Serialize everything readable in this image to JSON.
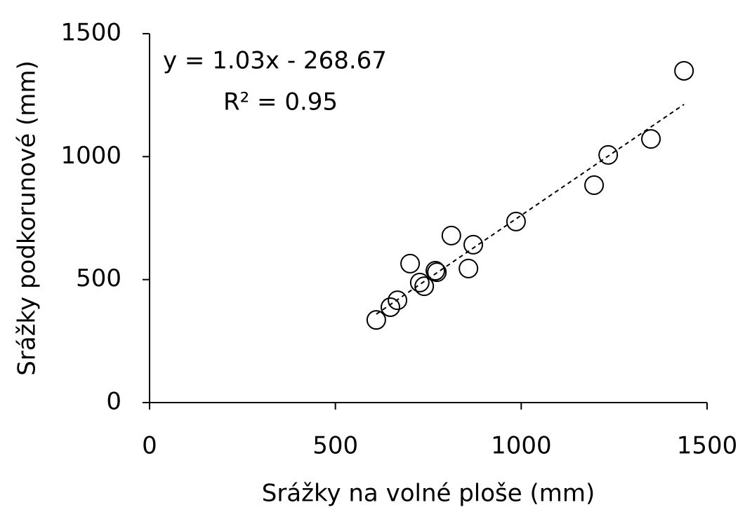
{
  "chart_data": {
    "type": "scatter",
    "x_label": "Srážky na volné ploše (mm)",
    "y_label": "Srážky podkorunové (mm)",
    "x": [
      610,
      648,
      667,
      701,
      727,
      739,
      769,
      773,
      812,
      858,
      871,
      986,
      1196,
      1234,
      1349,
      1438
    ],
    "values": [
      336,
      388,
      416,
      565,
      488,
      473,
      536,
      530,
      679,
      545,
      642,
      736,
      884,
      1007,
      1072,
      1349
    ],
    "color": "#000000",
    "xlim": [
      0,
      1500
    ],
    "xticks": [
      0,
      500,
      1000,
      1500
    ],
    "ylim": [
      0,
      1500
    ],
    "yticks": [
      0,
      500,
      1000,
      1500
    ],
    "grid": false,
    "trendline": {
      "slope": 1.03,
      "intercept": -268.67,
      "equation": "y = 1.03x - 268.67",
      "r_squared": "R² = 0.95"
    }
  }
}
